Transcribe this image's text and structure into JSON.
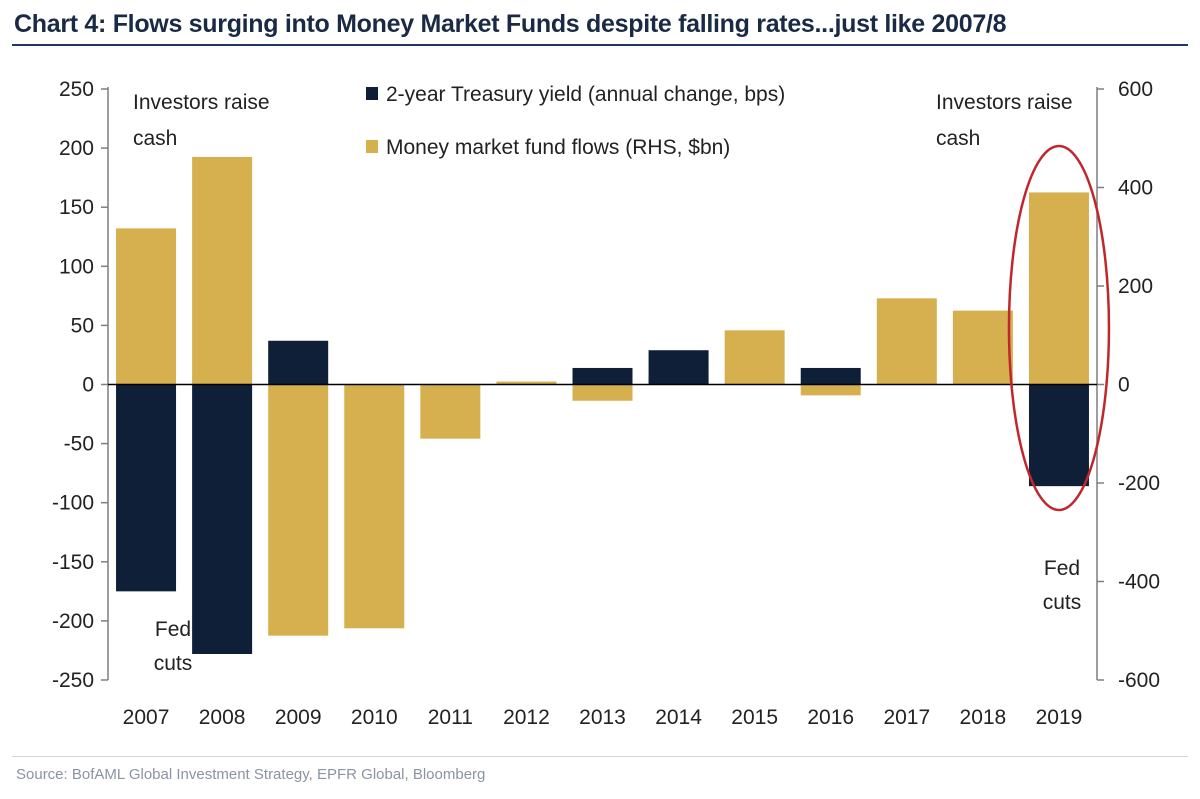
{
  "title": "Chart 4: Flows surging into Money Market Funds despite falling rates...just like 2007/8",
  "source": "Source:  BofAML Global Investment Strategy, EPFR Global, Bloomberg",
  "colors": {
    "yield": "#0f1f38",
    "flows": "#d6b04f",
    "highlight": "#c0272d",
    "title": "#1a2a44"
  },
  "chart_data": {
    "type": "bar",
    "categories": [
      "2007",
      "2008",
      "2009",
      "2010",
      "2011",
      "2012",
      "2013",
      "2014",
      "2015",
      "2016",
      "2017",
      "2018",
      "2019"
    ],
    "series": [
      {
        "name": "2-year Treasury yield (annual change, bps)",
        "axis": "left",
        "values": [
          -175,
          -228,
          37,
          0,
          0,
          0,
          14,
          29,
          0,
          14,
          0,
          0,
          -86
        ]
      },
      {
        "name": "Money market fund flows (RHS, $bn)",
        "axis": "right",
        "values": [
          317,
          462,
          -510,
          -495,
          -110,
          6,
          -33,
          20,
          110,
          -22,
          175,
          150,
          390
        ]
      }
    ],
    "y_left": {
      "lim": [
        -250,
        250
      ],
      "ticks": [
        250,
        200,
        150,
        100,
        50,
        0,
        -50,
        -100,
        -150,
        -200,
        -250
      ]
    },
    "y_right": {
      "lim": [
        -600,
        600
      ],
      "ticks": [
        600,
        400,
        200,
        0,
        -200,
        -400,
        -600
      ]
    },
    "annotations": [
      {
        "id": "investors-raise-cash-left",
        "lines": [
          "Investors raise",
          "cash"
        ]
      },
      {
        "id": "fed-cuts-left",
        "lines": [
          "Fed",
          "cuts"
        ]
      },
      {
        "id": "investors-raise-cash-right",
        "lines": [
          "Investors raise",
          "cash"
        ]
      },
      {
        "id": "fed-cuts-right",
        "lines": [
          "Fed",
          "cuts"
        ]
      }
    ],
    "highlight": {
      "category": "2019",
      "shape": "ellipse"
    }
  }
}
